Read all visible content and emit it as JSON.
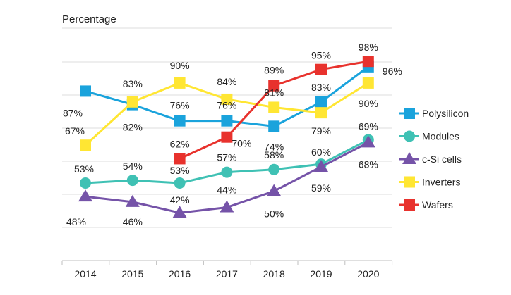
{
  "chart_data": {
    "type": "line",
    "title": "",
    "xlabel": "",
    "ylabel": "Percentage",
    "categories": [
      "2014",
      "2015",
      "2016",
      "2017",
      "2018",
      "2019",
      "2020"
    ],
    "ylim": [
      30,
      102
    ],
    "grid": "horizontal",
    "legend": "right",
    "series": [
      {
        "name": "Polysilicon",
        "color": "#1aa3dc",
        "marker": "square",
        "values": [
          87,
          82,
          76,
          76,
          74,
          83,
          96
        ],
        "labels": [
          "87%",
          "82%",
          "76%",
          "76%",
          "74%",
          "83%",
          "96%"
        ]
      },
      {
        "name": "Modules",
        "color": "#3fc1b4",
        "marker": "circle",
        "values": [
          53,
          54,
          53,
          57,
          58,
          60,
          69
        ],
        "labels": [
          "53%",
          "54%",
          "53%",
          "57%",
          "58%",
          "60%",
          "69%"
        ]
      },
      {
        "name": "c-Si cells",
        "color": "#7553a8",
        "marker": "triangle",
        "values": [
          48,
          46,
          42,
          44,
          50,
          59,
          68
        ],
        "labels": [
          "48%",
          "46%",
          "42%",
          "44%",
          "50%",
          "59%",
          "68%"
        ]
      },
      {
        "name": "Inverters",
        "color": "#ffe633",
        "marker": "square",
        "values": [
          67,
          83,
          90,
          84,
          81,
          79,
          90
        ],
        "labels": [
          "67%",
          "83%",
          "90%",
          "84%",
          "81%",
          "79%",
          "90%"
        ]
      },
      {
        "name": "Wafers",
        "color": "#e8322d",
        "marker": "square",
        "values": [
          null,
          null,
          62,
          70,
          89,
          95,
          98
        ],
        "labels": [
          null,
          null,
          "62%",
          "70%",
          "89%",
          "95%",
          "98%"
        ]
      }
    ]
  }
}
